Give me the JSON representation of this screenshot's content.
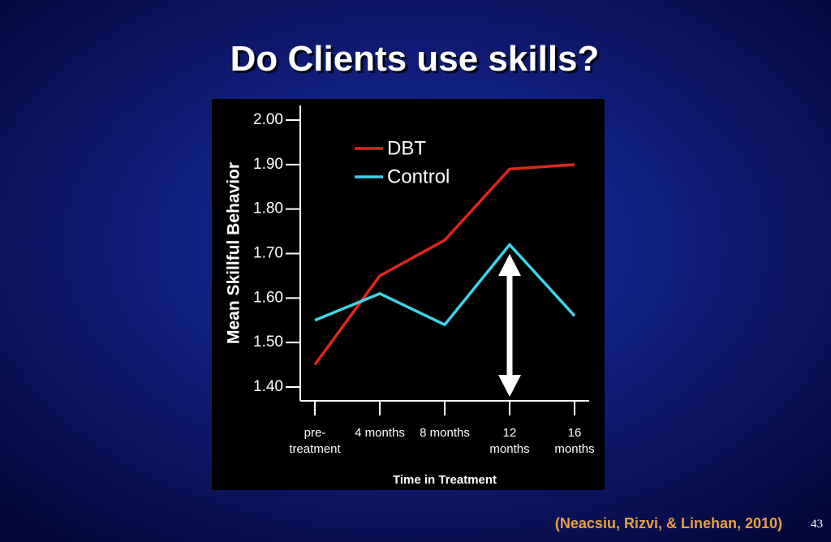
{
  "slide": {
    "title": "Do Clients use skills?",
    "citation": "(Neacsiu, Rizvi, & Linehan, 2010)",
    "page_number": "43"
  },
  "chart_data": {
    "type": "line",
    "y_label": "Mean Skillful Behavior",
    "x_label": "Time in Treatment",
    "categories": [
      "pre-\ntreatment",
      "4 months",
      "8 months",
      "12\nmonths",
      "16\nmonths"
    ],
    "series": [
      {
        "name": "DBT",
        "color": "#e0261b",
        "values": [
          1.45,
          1.65,
          1.73,
          1.89,
          1.9
        ]
      },
      {
        "name": "Control",
        "color": "#3fd3ec",
        "values": [
          1.55,
          1.61,
          1.54,
          1.72,
          1.56
        ]
      }
    ],
    "ylim": [
      1.4,
      2.0
    ],
    "yticks": [
      {
        "value": 1.4,
        "label": "1.40"
      },
      {
        "value": 1.5,
        "label": "1.50"
      },
      {
        "value": 1.6,
        "label": "1.60"
      },
      {
        "value": 1.7,
        "label": "1.70"
      },
      {
        "value": 1.8,
        "label": "1.80"
      },
      {
        "value": 1.9,
        "label": "1.90"
      },
      {
        "value": 2,
        "label": "2.00"
      }
    ]
  }
}
